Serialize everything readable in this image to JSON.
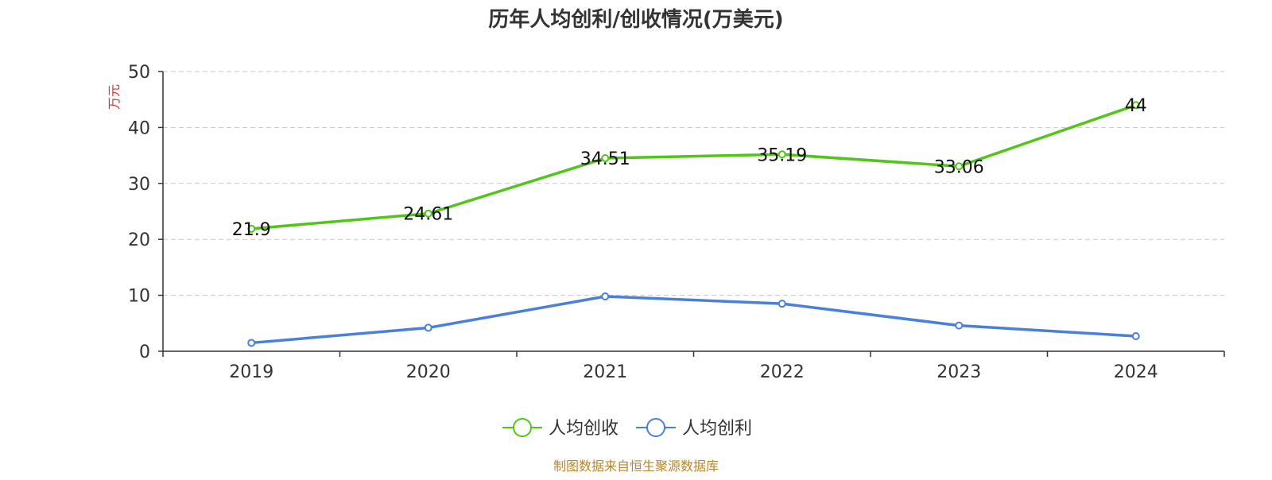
{
  "chart_data": {
    "type": "line",
    "title": "历年人均创利/创收情况(万美元)",
    "ylabel": "万元",
    "xlabel": "",
    "categories": [
      "2019",
      "2020",
      "2021",
      "2022",
      "2023",
      "2024"
    ],
    "ylim": [
      0,
      50
    ],
    "yticks": [
      0,
      10,
      20,
      30,
      40,
      50
    ],
    "grid": true,
    "legend_position": "bottom-center",
    "series": [
      {
        "name": "人均创收",
        "color": "#52c41a",
        "values": [
          21.9,
          24.61,
          34.51,
          35.19,
          33.06,
          44
        ],
        "labels": [
          "21.9",
          "24.61",
          "34.51",
          "35.19",
          "33.06",
          "44"
        ]
      },
      {
        "name": "人均创利",
        "color": "#4a7fdc",
        "values": [
          1.5,
          4.2,
          9.8,
          8.5,
          4.6,
          2.7
        ],
        "labels": []
      }
    ]
  },
  "source_text": "制图数据来自恒生聚源数据库"
}
